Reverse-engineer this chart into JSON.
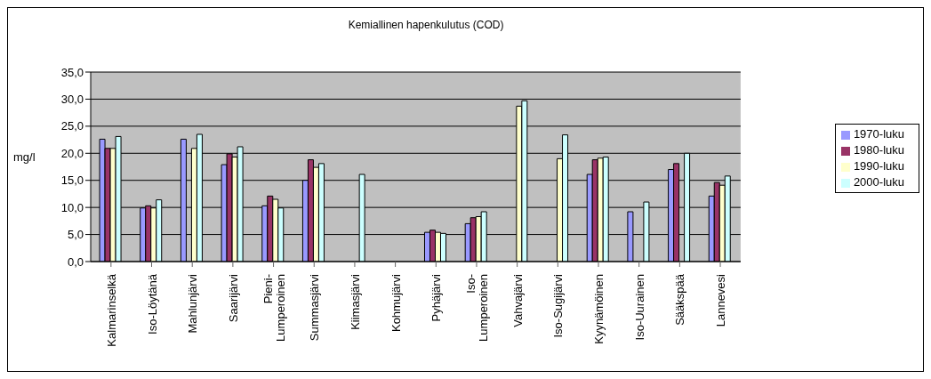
{
  "chart_data": {
    "type": "bar",
    "title": "Kemiallinen hapenkulutus (COD)",
    "ylabel": "mg/l",
    "categories": [
      "Kalmarinselkä",
      "Iso-Löytänä",
      "Mahlunjärvi",
      "Saarijärvi",
      "Pieni-Lumperoinen",
      "Summasjärvi",
      "Kiimasjärvi",
      "Kohmujärvi",
      "Pyhäjärvi",
      "Iso-Lumperoinen",
      "Vahvajärvi",
      "Iso-Sugijärvi",
      "Kyynämöinen",
      "Iso-Uurainen",
      "Sääkspää",
      "Lannevesi"
    ],
    "series": [
      {
        "name": "1970-luku",
        "color": "#9999ff",
        "values": [
          22.6,
          9.9,
          22.6,
          17.9,
          10.3,
          15.0,
          null,
          null,
          5.4,
          7.0,
          null,
          null,
          16.1,
          9.2,
          17.0,
          12.1
        ]
      },
      {
        "name": "1980-luku",
        "color": "#993366",
        "values": [
          20.9,
          10.3,
          null,
          19.9,
          12.1,
          18.8,
          null,
          null,
          5.8,
          8.1,
          null,
          null,
          18.8,
          null,
          18.1,
          14.6
        ]
      },
      {
        "name": "1990-luku",
        "color": "#ffffcc",
        "values": [
          20.9,
          9.9,
          20.9,
          19.3,
          11.5,
          17.4,
          null,
          null,
          5.4,
          8.3,
          28.7,
          19.0,
          19.1,
          null,
          null,
          14.1
        ]
      },
      {
        "name": "2000-luku",
        "color": "#ccffff",
        "values": [
          23.1,
          11.4,
          23.5,
          21.2,
          9.9,
          18.1,
          16.1,
          null,
          5.2,
          9.2,
          29.7,
          23.4,
          19.3,
          11.0,
          20.0,
          15.8
        ]
      }
    ],
    "ylim": [
      0,
      35
    ],
    "yticks": [
      {
        "value": 0,
        "label": "0,0"
      },
      {
        "value": 5,
        "label": "5,0"
      },
      {
        "value": 10,
        "label": "10,0"
      },
      {
        "value": 15,
        "label": "15,0"
      },
      {
        "value": 20,
        "label": "20,0"
      },
      {
        "value": 25,
        "label": "25,0"
      },
      {
        "value": 30,
        "label": "30,0"
      },
      {
        "value": 35,
        "label": "35,0"
      }
    ],
    "grid": "y",
    "legend": "right"
  }
}
